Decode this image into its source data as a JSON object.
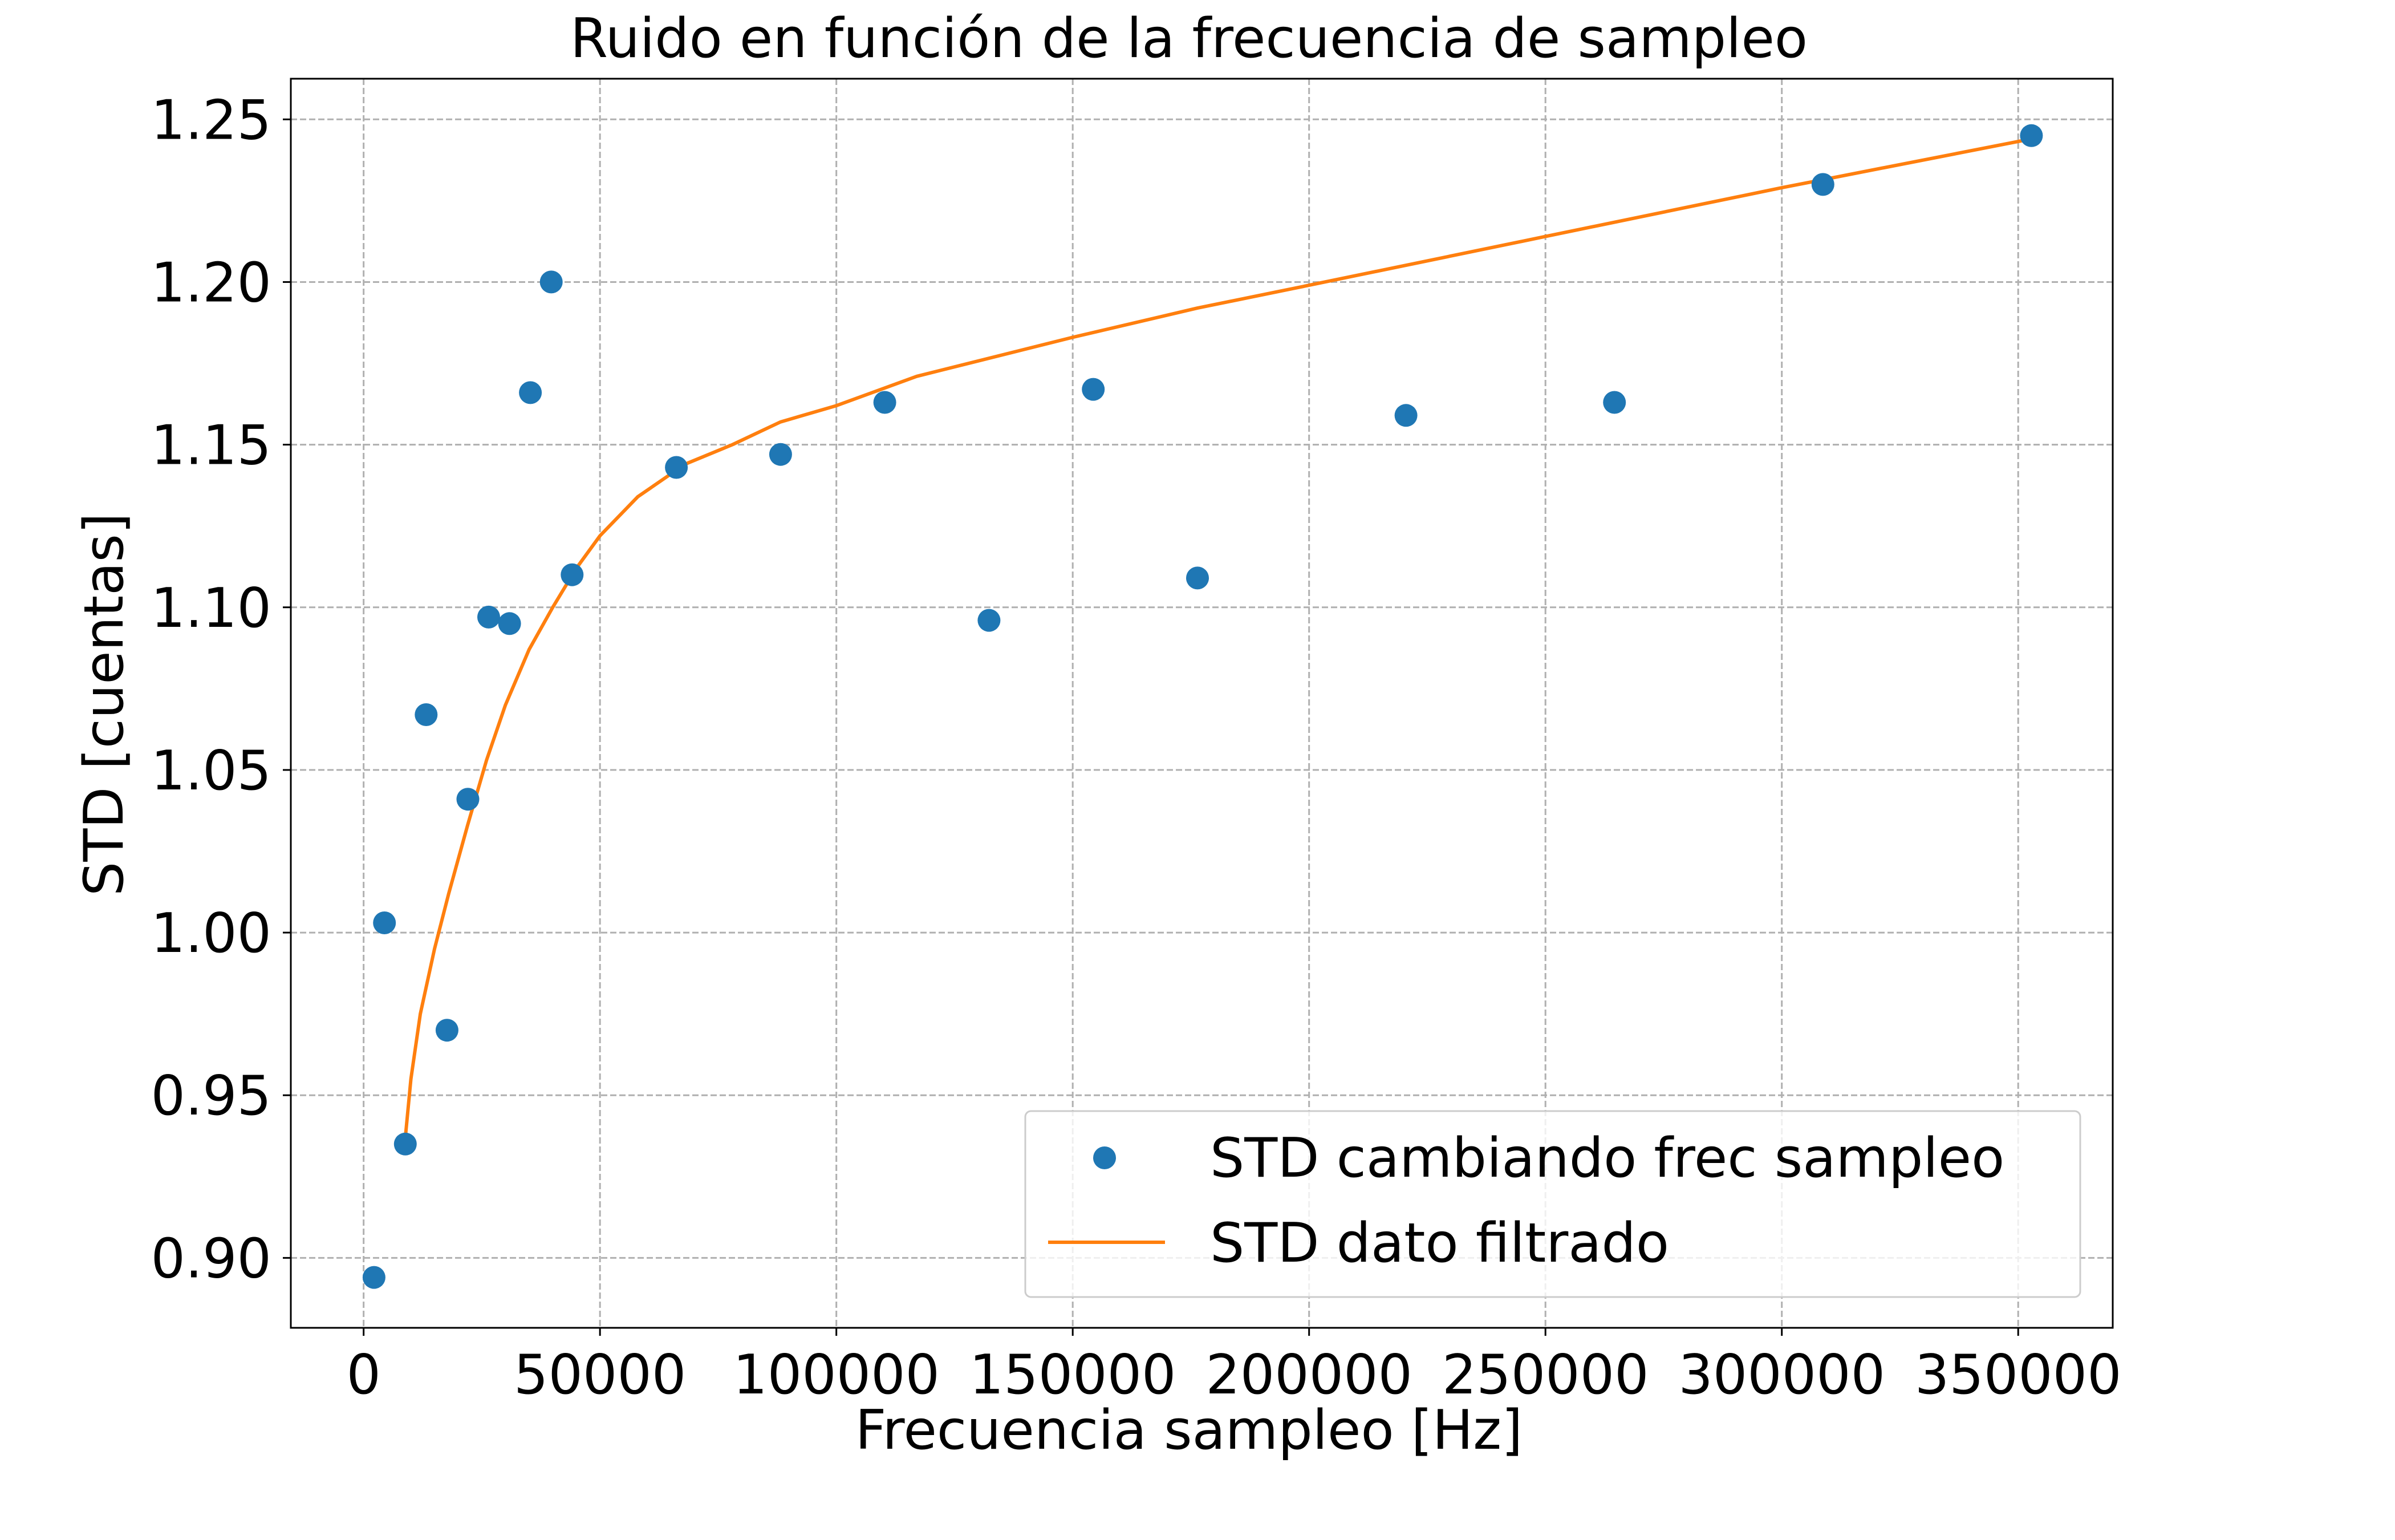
{
  "chart_data": {
    "type": "scatter",
    "title": "Ruido en función de la frecuencia de sampleo",
    "xlabel": "Frecuencia sampleo [Hz]",
    "ylabel": "STD [cuentas]",
    "xlim": [
      -15400,
      370000
    ],
    "ylim": [
      0.8785,
      1.2625
    ],
    "x_ticks": [
      0,
      50000,
      100000,
      150000,
      200000,
      250000,
      300000,
      350000
    ],
    "x_tick_labels": [
      "0",
      "50000",
      "100000",
      "150000",
      "200000",
      "250000",
      "300000",
      "350000"
    ],
    "y_ticks": [
      0.9,
      0.95,
      1.0,
      1.05,
      1.1,
      1.15,
      1.2,
      1.25
    ],
    "y_tick_labels": [
      "0.90",
      "0.95",
      "1.00",
      "1.05",
      "1.10",
      "1.15",
      "1.20",
      "1.25"
    ],
    "grid": true,
    "legend_position": "lower-right",
    "series": [
      {
        "name": "STD cambiando frec sampleo",
        "kind": "scatter",
        "color": "#1f77b4",
        "points": [
          [
            2205,
            0.894
          ],
          [
            4410,
            1.003
          ],
          [
            8820,
            0.935
          ],
          [
            13230,
            1.067
          ],
          [
            17640,
            0.97
          ],
          [
            22050,
            1.041
          ],
          [
            26460,
            1.097
          ],
          [
            30870,
            1.095
          ],
          [
            35280,
            1.166
          ],
          [
            39690,
            1.2
          ],
          [
            44100,
            1.11
          ],
          [
            66150,
            1.143
          ],
          [
            88200,
            1.147
          ],
          [
            110250,
            1.163
          ],
          [
            132300,
            1.096
          ],
          [
            154350,
            1.167
          ],
          [
            176400,
            1.109
          ],
          [
            220500,
            1.159
          ],
          [
            264600,
            1.163
          ],
          [
            308700,
            1.23
          ],
          [
            352800,
            1.245
          ]
        ]
      },
      {
        "name": "STD dato filtrado",
        "kind": "line",
        "color": "#ff7f0e",
        "points": [
          [
            8820,
            0.937
          ],
          [
            10000,
            0.955
          ],
          [
            12000,
            0.975
          ],
          [
            15000,
            0.995
          ],
          [
            18000,
            1.012
          ],
          [
            22000,
            1.033
          ],
          [
            26000,
            1.053
          ],
          [
            30000,
            1.07
          ],
          [
            35000,
            1.087
          ],
          [
            40000,
            1.1
          ],
          [
            45000,
            1.112
          ],
          [
            50000,
            1.122
          ],
          [
            58000,
            1.134
          ],
          [
            68000,
            1.144
          ],
          [
            78000,
            1.15
          ],
          [
            88200,
            1.157
          ],
          [
            100000,
            1.162
          ],
          [
            117000,
            1.171
          ],
          [
            150000,
            1.183
          ],
          [
            176400,
            1.192
          ],
          [
            200000,
            1.199
          ],
          [
            250000,
            1.214
          ],
          [
            300000,
            1.229
          ],
          [
            352800,
            1.244
          ]
        ]
      }
    ]
  }
}
